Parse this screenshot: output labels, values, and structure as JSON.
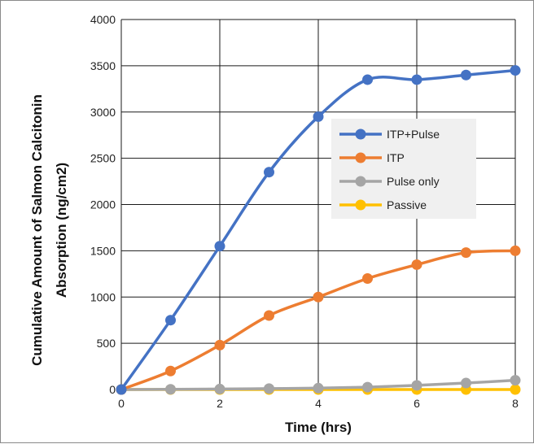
{
  "chart_data": {
    "type": "line",
    "title": "",
    "xlabel": "Time (hrs)",
    "ylabel_lines": [
      "Cumulative Amount of Salmon Calcitonin",
      "Absorption (ng/cm2)"
    ],
    "xlim": [
      0,
      8
    ],
    "ylim": [
      0,
      4000
    ],
    "x_ticks": [
      0,
      2,
      4,
      6,
      8
    ],
    "y_ticks": [
      0,
      500,
      1000,
      1500,
      2000,
      2500,
      3000,
      3500,
      4000
    ],
    "grid": true,
    "legend_position": "right-middle",
    "x": [
      0,
      1,
      2,
      3,
      4,
      5,
      6,
      7,
      8
    ],
    "series": [
      {
        "name": "ITP+Pulse",
        "color": "#4472C4",
        "values": [
          0,
          750,
          1550,
          2350,
          2950,
          3350,
          3350,
          3400,
          3450
        ]
      },
      {
        "name": "ITP",
        "color": "#ED7D31",
        "values": [
          0,
          200,
          480,
          800,
          1000,
          1200,
          1350,
          1480,
          1500
        ]
      },
      {
        "name": "Pulse only",
        "color": "#A5A5A5",
        "values": [
          0,
          2,
          5,
          10,
          15,
          25,
          45,
          70,
          100
        ]
      },
      {
        "name": "Passive",
        "color": "#FFC000",
        "values": [
          0,
          0,
          0,
          0,
          0,
          0,
          0,
          0,
          0
        ]
      }
    ]
  }
}
